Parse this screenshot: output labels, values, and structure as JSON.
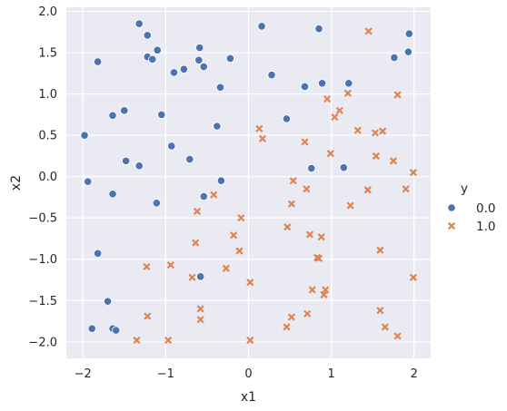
{
  "chart_data": {
    "type": "scatter",
    "title": "",
    "xlabel": "x1",
    "ylabel": "x2",
    "xlim": [
      -2.2,
      2.2
    ],
    "ylim": [
      -2.2,
      2.05
    ],
    "xticks": [
      -2,
      -1,
      0,
      1,
      2
    ],
    "yticks": [
      -2.0,
      -1.5,
      -1.0,
      -0.5,
      0.0,
      0.5,
      1.0,
      1.5,
      2.0
    ],
    "xtick_labels": [
      "−2",
      "−1",
      "0",
      "1",
      "2"
    ],
    "ytick_labels": [
      "−2.0",
      "−1.5",
      "−1.0",
      "−0.5",
      "0.0",
      "0.5",
      "1.0",
      "1.5",
      "2.0"
    ],
    "grid": true,
    "legend": {
      "title": "y",
      "placement": "right",
      "entries": [
        {
          "label": "0.0",
          "marker": "circle",
          "color": "#4c72b0"
        },
        {
          "label": "1.0",
          "marker": "x",
          "color": "#dd8452"
        }
      ]
    },
    "series": [
      {
        "name": "0.0",
        "marker": "circle",
        "color": "#4c72b0",
        "points": [
          [
            -1.32,
            1.85
          ],
          [
            -1.22,
            1.71
          ],
          [
            -1.22,
            1.45
          ],
          [
            -1.16,
            1.42
          ],
          [
            -1.1,
            1.53
          ],
          [
            -0.59,
            1.56
          ],
          [
            -0.6,
            1.41
          ],
          [
            -0.54,
            1.33
          ],
          [
            -0.78,
            1.3
          ],
          [
            -0.9,
            1.26
          ],
          [
            -0.22,
            1.43
          ],
          [
            -0.34,
            1.08
          ],
          [
            0.16,
            1.82
          ],
          [
            0.85,
            1.79
          ],
          [
            1.94,
            1.73
          ],
          [
            1.93,
            1.51
          ],
          [
            1.76,
            1.44
          ],
          [
            1.21,
            1.13
          ],
          [
            0.89,
            1.13
          ],
          [
            0.28,
            1.23
          ],
          [
            0.68,
            1.09
          ],
          [
            0.46,
            0.7
          ],
          [
            -1.82,
            1.39
          ],
          [
            -1.64,
            0.74
          ],
          [
            -1.5,
            0.8
          ],
          [
            -1.05,
            0.75
          ],
          [
            -0.38,
            0.61
          ],
          [
            -1.98,
            0.5
          ],
          [
            -0.93,
            0.37
          ],
          [
            -0.71,
            0.21
          ],
          [
            -1.48,
            0.19
          ],
          [
            -1.32,
            0.13
          ],
          [
            0.76,
            0.1
          ],
          [
            1.15,
            0.11
          ],
          [
            -1.94,
            -0.06
          ],
          [
            -0.33,
            -0.05
          ],
          [
            -1.64,
            -0.21
          ],
          [
            -0.54,
            -0.24
          ],
          [
            -1.11,
            -0.32
          ],
          [
            -1.82,
            -0.93
          ],
          [
            -0.58,
            -1.21
          ],
          [
            -1.7,
            -1.51
          ],
          [
            -1.89,
            -1.84
          ],
          [
            -1.64,
            -1.84
          ],
          [
            -1.6,
            -1.86
          ]
        ]
      },
      {
        "name": "1.0",
        "marker": "x",
        "color": "#dd8452",
        "points": [
          [
            1.45,
            1.76
          ],
          [
            1.8,
            0.99
          ],
          [
            1.2,
            1.01
          ],
          [
            0.95,
            0.94
          ],
          [
            1.1,
            0.8
          ],
          [
            1.04,
            0.72
          ],
          [
            0.13,
            0.58
          ],
          [
            0.17,
            0.46
          ],
          [
            1.32,
            0.56
          ],
          [
            1.53,
            0.53
          ],
          [
            1.62,
            0.55
          ],
          [
            0.68,
            0.42
          ],
          [
            0.99,
            0.28
          ],
          [
            1.54,
            0.25
          ],
          [
            1.75,
            0.19
          ],
          [
            1.99,
            0.05
          ],
          [
            0.54,
            -0.05
          ],
          [
            0.7,
            -0.15
          ],
          [
            1.44,
            -0.16
          ],
          [
            1.9,
            -0.15
          ],
          [
            -0.42,
            -0.22
          ],
          [
            0.52,
            -0.33
          ],
          [
            1.23,
            -0.35
          ],
          [
            -0.62,
            -0.42
          ],
          [
            -0.09,
            -0.5
          ],
          [
            0.47,
            -0.61
          ],
          [
            -0.18,
            -0.71
          ],
          [
            0.74,
            -0.7
          ],
          [
            0.88,
            -0.73
          ],
          [
            -0.64,
            -0.8
          ],
          [
            -0.11,
            -0.9
          ],
          [
            1.59,
            -0.89
          ],
          [
            0.83,
            -0.98
          ],
          [
            0.85,
            -0.99
          ],
          [
            -1.23,
            -1.09
          ],
          [
            -0.94,
            -1.07
          ],
          [
            -0.27,
            -1.11
          ],
          [
            1.99,
            -1.22
          ],
          [
            -0.68,
            -1.22
          ],
          [
            0.02,
            -1.28
          ],
          [
            0.77,
            -1.37
          ],
          [
            0.93,
            -1.37
          ],
          [
            0.91,
            -1.43
          ],
          [
            -0.58,
            -1.6
          ],
          [
            1.59,
            -1.62
          ],
          [
            0.71,
            -1.66
          ],
          [
            -1.22,
            -1.69
          ],
          [
            0.52,
            -1.7
          ],
          [
            -0.58,
            -1.73
          ],
          [
            1.65,
            -1.82
          ],
          [
            0.46,
            -1.82
          ],
          [
            1.8,
            -1.93
          ],
          [
            -1.35,
            -1.98
          ],
          [
            -0.97,
            -1.98
          ],
          [
            0.02,
            -1.98
          ]
        ]
      }
    ]
  }
}
